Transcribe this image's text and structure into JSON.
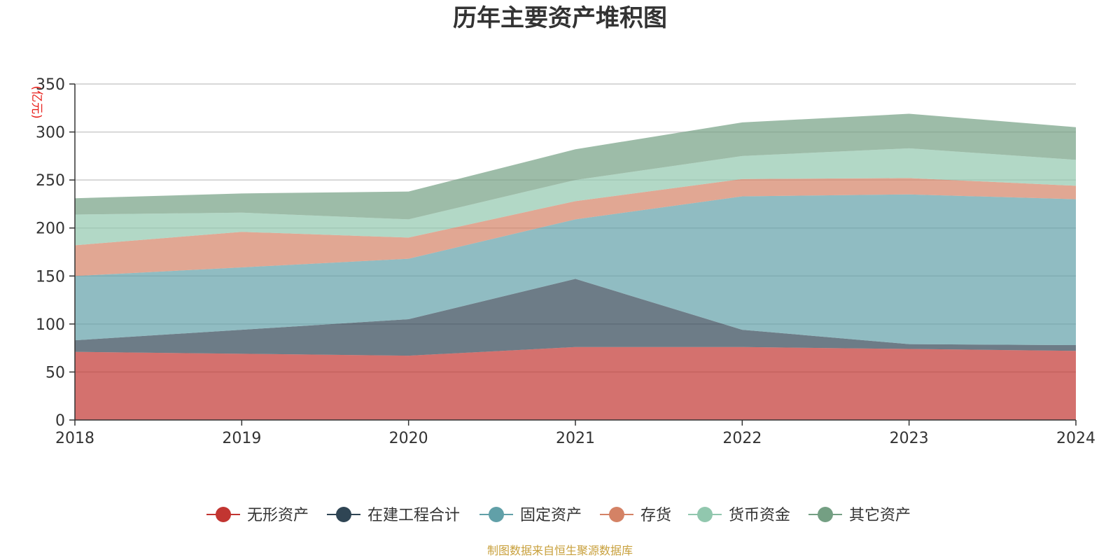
{
  "chart_data": {
    "type": "area",
    "stacked": true,
    "title": "历年主要资产堆积图",
    "unit_label": "(亿元)",
    "xlabel": "",
    "ylabel": "(亿元)",
    "categories": [
      "2018",
      "2019",
      "2020",
      "2021",
      "2022",
      "2023",
      "2024"
    ],
    "ylim": [
      0,
      350
    ],
    "yticks": [
      "0",
      "50",
      "100",
      "150",
      "200",
      "250",
      "300",
      "350"
    ],
    "grid": true,
    "legend_position": "bottom",
    "series": [
      {
        "name": "无形资产",
        "color": "#c23531",
        "values": [
          71,
          69,
          67,
          76,
          76,
          74,
          72
        ]
      },
      {
        "name": "在建工程合计",
        "color": "#2f4554",
        "values": [
          12,
          25,
          38,
          71,
          18,
          5,
          6
        ]
      },
      {
        "name": "固定资产",
        "color": "#61a0a8",
        "values": [
          67,
          65,
          63,
          62,
          139,
          156,
          152
        ]
      },
      {
        "name": "存货",
        "color": "#d48265",
        "values": [
          32,
          37,
          22,
          19,
          18,
          17,
          14
        ]
      },
      {
        "name": "货币资金",
        "color": "#91c7ae",
        "values": [
          32,
          20,
          19,
          22,
          24,
          31,
          27
        ]
      },
      {
        "name": "其它资产",
        "color": "#749f83",
        "values": [
          17,
          20,
          29,
          32,
          35,
          36,
          34
        ]
      }
    ],
    "source": "制图数据来自恒生聚源数据库"
  }
}
